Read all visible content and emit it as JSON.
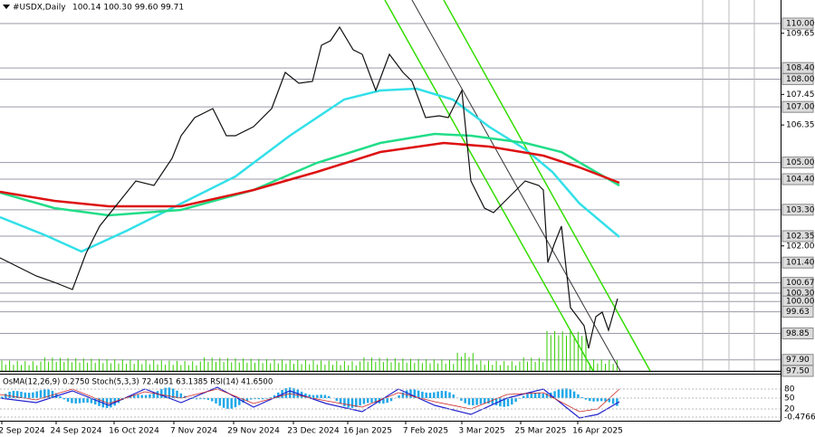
{
  "header": {
    "symbol": "#USDX,Daily",
    "ohlc": "100.14 100.30 99.60 99.71"
  },
  "price_axis": [
    {
      "label": "110.00",
      "boxed": true
    },
    {
      "label": "109.65",
      "boxed": false
    },
    {
      "label": "108.40",
      "boxed": true
    },
    {
      "label": "108.00",
      "boxed": true
    },
    {
      "label": "107.45",
      "boxed": false
    },
    {
      "label": "107.00",
      "boxed": true
    },
    {
      "label": "106.35",
      "boxed": false
    },
    {
      "label": "105.00",
      "boxed": true
    },
    {
      "label": "104.40",
      "boxed": true
    },
    {
      "label": "103.30",
      "boxed": true
    },
    {
      "label": "102.35",
      "boxed": true
    },
    {
      "label": "102.00",
      "boxed": false
    },
    {
      "label": "101.40",
      "boxed": true
    },
    {
      "label": "100.67",
      "boxed": true
    },
    {
      "label": "100.30",
      "boxed": true
    },
    {
      "label": "100.00",
      "boxed": true
    },
    {
      "label": "99.63",
      "boxed": true
    },
    {
      "label": "98.85",
      "boxed": true
    },
    {
      "label": "97.90",
      "boxed": true
    },
    {
      "label": "97.50",
      "boxed": true
    }
  ],
  "indicator": {
    "label": "OsMA(12,26,9) 0.2750  Stoch(5,3,3) 72.4051 63.1385  RSI(14) 41.6500",
    "axis": [
      "80",
      "50",
      "20",
      "-0.4766"
    ]
  },
  "dates": [
    "2 Sep 2024",
    "24 Sep 2024",
    "16 Oct 2024",
    "7 Nov 2024",
    "29 Nov 2024",
    "23 Dec 2024",
    "16 Jan 2025",
    "7 Feb 2025",
    "3 Mar 2025",
    "25 Mar 2025",
    "16 Apr 2025"
  ]
}
